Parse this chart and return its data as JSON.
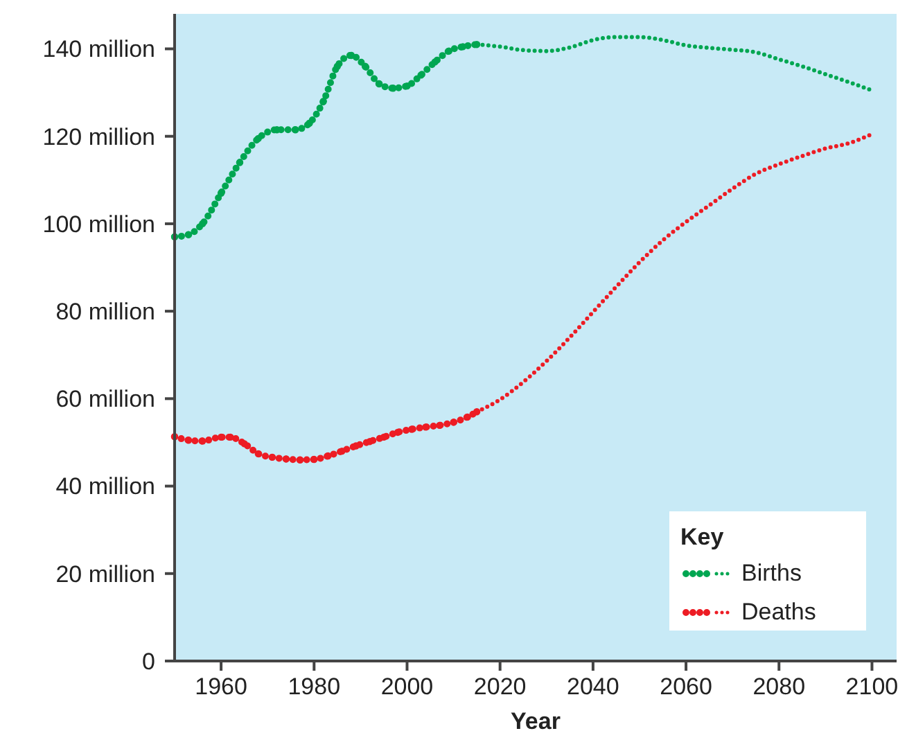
{
  "chart_data": {
    "type": "line",
    "xlabel": "Year",
    "legend_title": "Key",
    "legend": "bottom right",
    "xlim": [
      1950,
      2105
    ],
    "ylim": [
      0,
      148
    ],
    "xticks": [
      1960,
      1980,
      2000,
      2020,
      2040,
      2060,
      2080,
      2100
    ],
    "yticks": [
      {
        "value": 0,
        "label": "0"
      },
      {
        "value": 20,
        "label": "20 million"
      },
      {
        "value": 40,
        "label": "40 million"
      },
      {
        "value": 60,
        "label": "60 million"
      },
      {
        "value": 80,
        "label": "80 million"
      },
      {
        "value": 100,
        "label": "100 million"
      },
      {
        "value": 120,
        "label": "120 million"
      },
      {
        "value": 140,
        "label": "140 million"
      }
    ],
    "grid": false,
    "series": [
      {
        "name": "Births",
        "color": "#00a651",
        "marker": "circle",
        "line_style": "dotted",
        "x": [
          1950,
          1953,
          1956,
          1960,
          1964,
          1968,
          1972,
          1976,
          1979,
          1982,
          1985,
          1988,
          1991,
          1994,
          1997,
          2000,
          2003,
          2006,
          2009,
          2012,
          2015
        ],
        "values": [
          97,
          97.5,
          100,
          107,
          114,
          119.5,
          121.5,
          121.5,
          123,
          128,
          136,
          138.5,
          136,
          132,
          131,
          131.5,
          134,
          137,
          139.5,
          140.5,
          141
        ]
      },
      {
        "color": "#00a651",
        "marker": "none",
        "line_style": "dotted",
        "x": [
          2015,
          2020,
          2025,
          2030,
          2035,
          2040,
          2045,
          2050,
          2055,
          2060,
          2065,
          2070,
          2075,
          2080,
          2085,
          2090,
          2095,
          2100
        ],
        "values": [
          141,
          140.5,
          139.7,
          139.5,
          140.3,
          142,
          142.7,
          142.7,
          142,
          140.8,
          140.2,
          139.8,
          139.2,
          137.6,
          136,
          134.2,
          132.4,
          130.5
        ]
      },
      {
        "name": "Deaths",
        "color": "#ed1c24",
        "marker": "circle",
        "line_style": "dotted",
        "x": [
          1950,
          1953,
          1956,
          1960,
          1962,
          1965,
          1968,
          1971,
          1974,
          1977,
          1980,
          1983,
          1986,
          1989,
          1992,
          1995,
          1998,
          2001,
          2004,
          2007,
          2010,
          2013,
          2015
        ],
        "values": [
          51.3,
          50.5,
          50.3,
          51.2,
          51.2,
          49.7,
          47.4,
          46.6,
          46.2,
          46,
          46.1,
          46.9,
          48,
          49.2,
          50.2,
          51.2,
          52.3,
          53,
          53.5,
          53.9,
          54.6,
          55.8,
          57
        ]
      },
      {
        "color": "#ed1c24",
        "marker": "none",
        "line_style": "dotted",
        "x": [
          2015,
          2020,
          2025,
          2030,
          2035,
          2040,
          2045,
          2050,
          2055,
          2060,
          2065,
          2070,
          2075,
          2080,
          2085,
          2090,
          2095,
          2100
        ],
        "values": [
          57,
          59.8,
          63.8,
          68.6,
          74,
          79.8,
          85.6,
          91.2,
          96.2,
          100.4,
          104.2,
          108,
          111.4,
          113.6,
          115.5,
          117.2,
          118.4,
          120.5
        ]
      }
    ]
  }
}
